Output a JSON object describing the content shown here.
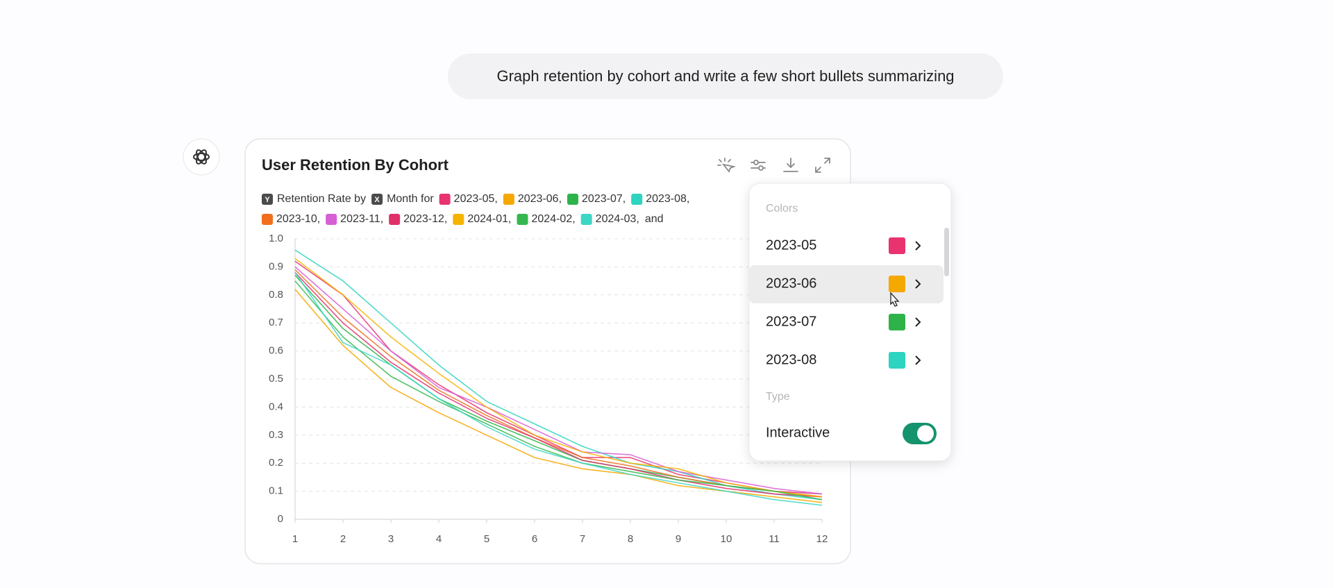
{
  "message": "Graph retention by cohort and write a few short bullets summarizing",
  "legend": {
    "y_badge": "Y",
    "y_text": "Retention Rate by",
    "x_badge": "X",
    "x_text": "Month for",
    "separator": ",",
    "and": "and"
  },
  "chart_data": {
    "type": "line",
    "title": "User Retention By Cohort",
    "x": [
      1,
      2,
      3,
      4,
      5,
      6,
      7,
      8,
      9,
      10,
      11,
      12
    ],
    "xlim": [
      1,
      12
    ],
    "xticks": [
      1,
      2,
      3,
      4,
      5,
      6,
      7,
      8,
      9,
      10,
      11,
      12
    ],
    "ylim": [
      0,
      1
    ],
    "yticks": [
      0,
      0.1,
      0.2,
      0.3,
      0.4,
      0.5,
      0.6,
      0.7,
      0.8,
      0.9,
      {
        "value": 1,
        "label": "1.0"
      }
    ],
    "grid": true,
    "series": [
      {
        "name": "2023-05",
        "color": "#e8336f",
        "values": [
          0.92,
          0.8,
          0.6,
          0.48,
          0.38,
          0.3,
          0.22,
          0.22,
          0.16,
          0.13,
          0.1,
          0.09
        ]
      },
      {
        "name": "2023-06",
        "color": "#f5a800",
        "values": [
          0.82,
          0.62,
          0.47,
          0.38,
          0.3,
          0.22,
          0.18,
          0.16,
          0.12,
          0.1,
          0.08,
          0.06
        ]
      },
      {
        "name": "2023-07",
        "color": "#2db34a",
        "values": [
          0.87,
          0.68,
          0.55,
          0.43,
          0.35,
          0.28,
          0.21,
          0.18,
          0.15,
          0.12,
          0.1,
          0.08
        ]
      },
      {
        "name": "2023-08",
        "color": "#2dd4bf",
        "values": [
          0.96,
          0.85,
          0.7,
          0.55,
          0.42,
          0.34,
          0.26,
          0.2,
          0.17,
          0.12,
          0.09,
          0.07
        ]
      },
      {
        "name": "2023-10",
        "color": "#f07020",
        "values": [
          0.89,
          0.72,
          0.58,
          0.46,
          0.37,
          0.29,
          0.22,
          0.19,
          0.15,
          0.12,
          0.1,
          0.08
        ]
      },
      {
        "name": "2023-11",
        "color": "#d65fd4",
        "values": [
          0.9,
          0.75,
          0.6,
          0.47,
          0.4,
          0.32,
          0.24,
          0.23,
          0.17,
          0.14,
          0.11,
          0.09
        ]
      },
      {
        "name": "2023-12",
        "color": "#e0306a",
        "values": [
          0.88,
          0.7,
          0.56,
          0.45,
          0.36,
          0.29,
          0.21,
          0.18,
          0.14,
          0.11,
          0.09,
          0.08
        ]
      },
      {
        "name": "2024-01",
        "color": "#f5b400",
        "values": [
          0.93,
          0.8,
          0.65,
          0.52,
          0.4,
          0.3,
          0.24,
          0.2,
          0.18,
          0.13,
          0.1,
          0.08
        ]
      },
      {
        "name": "2024-02",
        "color": "#34b84e",
        "values": [
          0.85,
          0.65,
          0.51,
          0.42,
          0.34,
          0.26,
          0.2,
          0.17,
          0.14,
          0.12,
          0.1,
          0.07
        ]
      },
      {
        "name": "2024-03",
        "color": "#3dd6c4",
        "values": [
          0.88,
          0.63,
          0.55,
          0.43,
          0.33,
          0.25,
          0.2,
          0.16,
          0.13,
          0.1,
          0.07,
          0.05
        ]
      }
    ]
  },
  "popover": {
    "colors_label": "Colors",
    "type_label": "Type",
    "interactive_label": "Interactive"
  }
}
